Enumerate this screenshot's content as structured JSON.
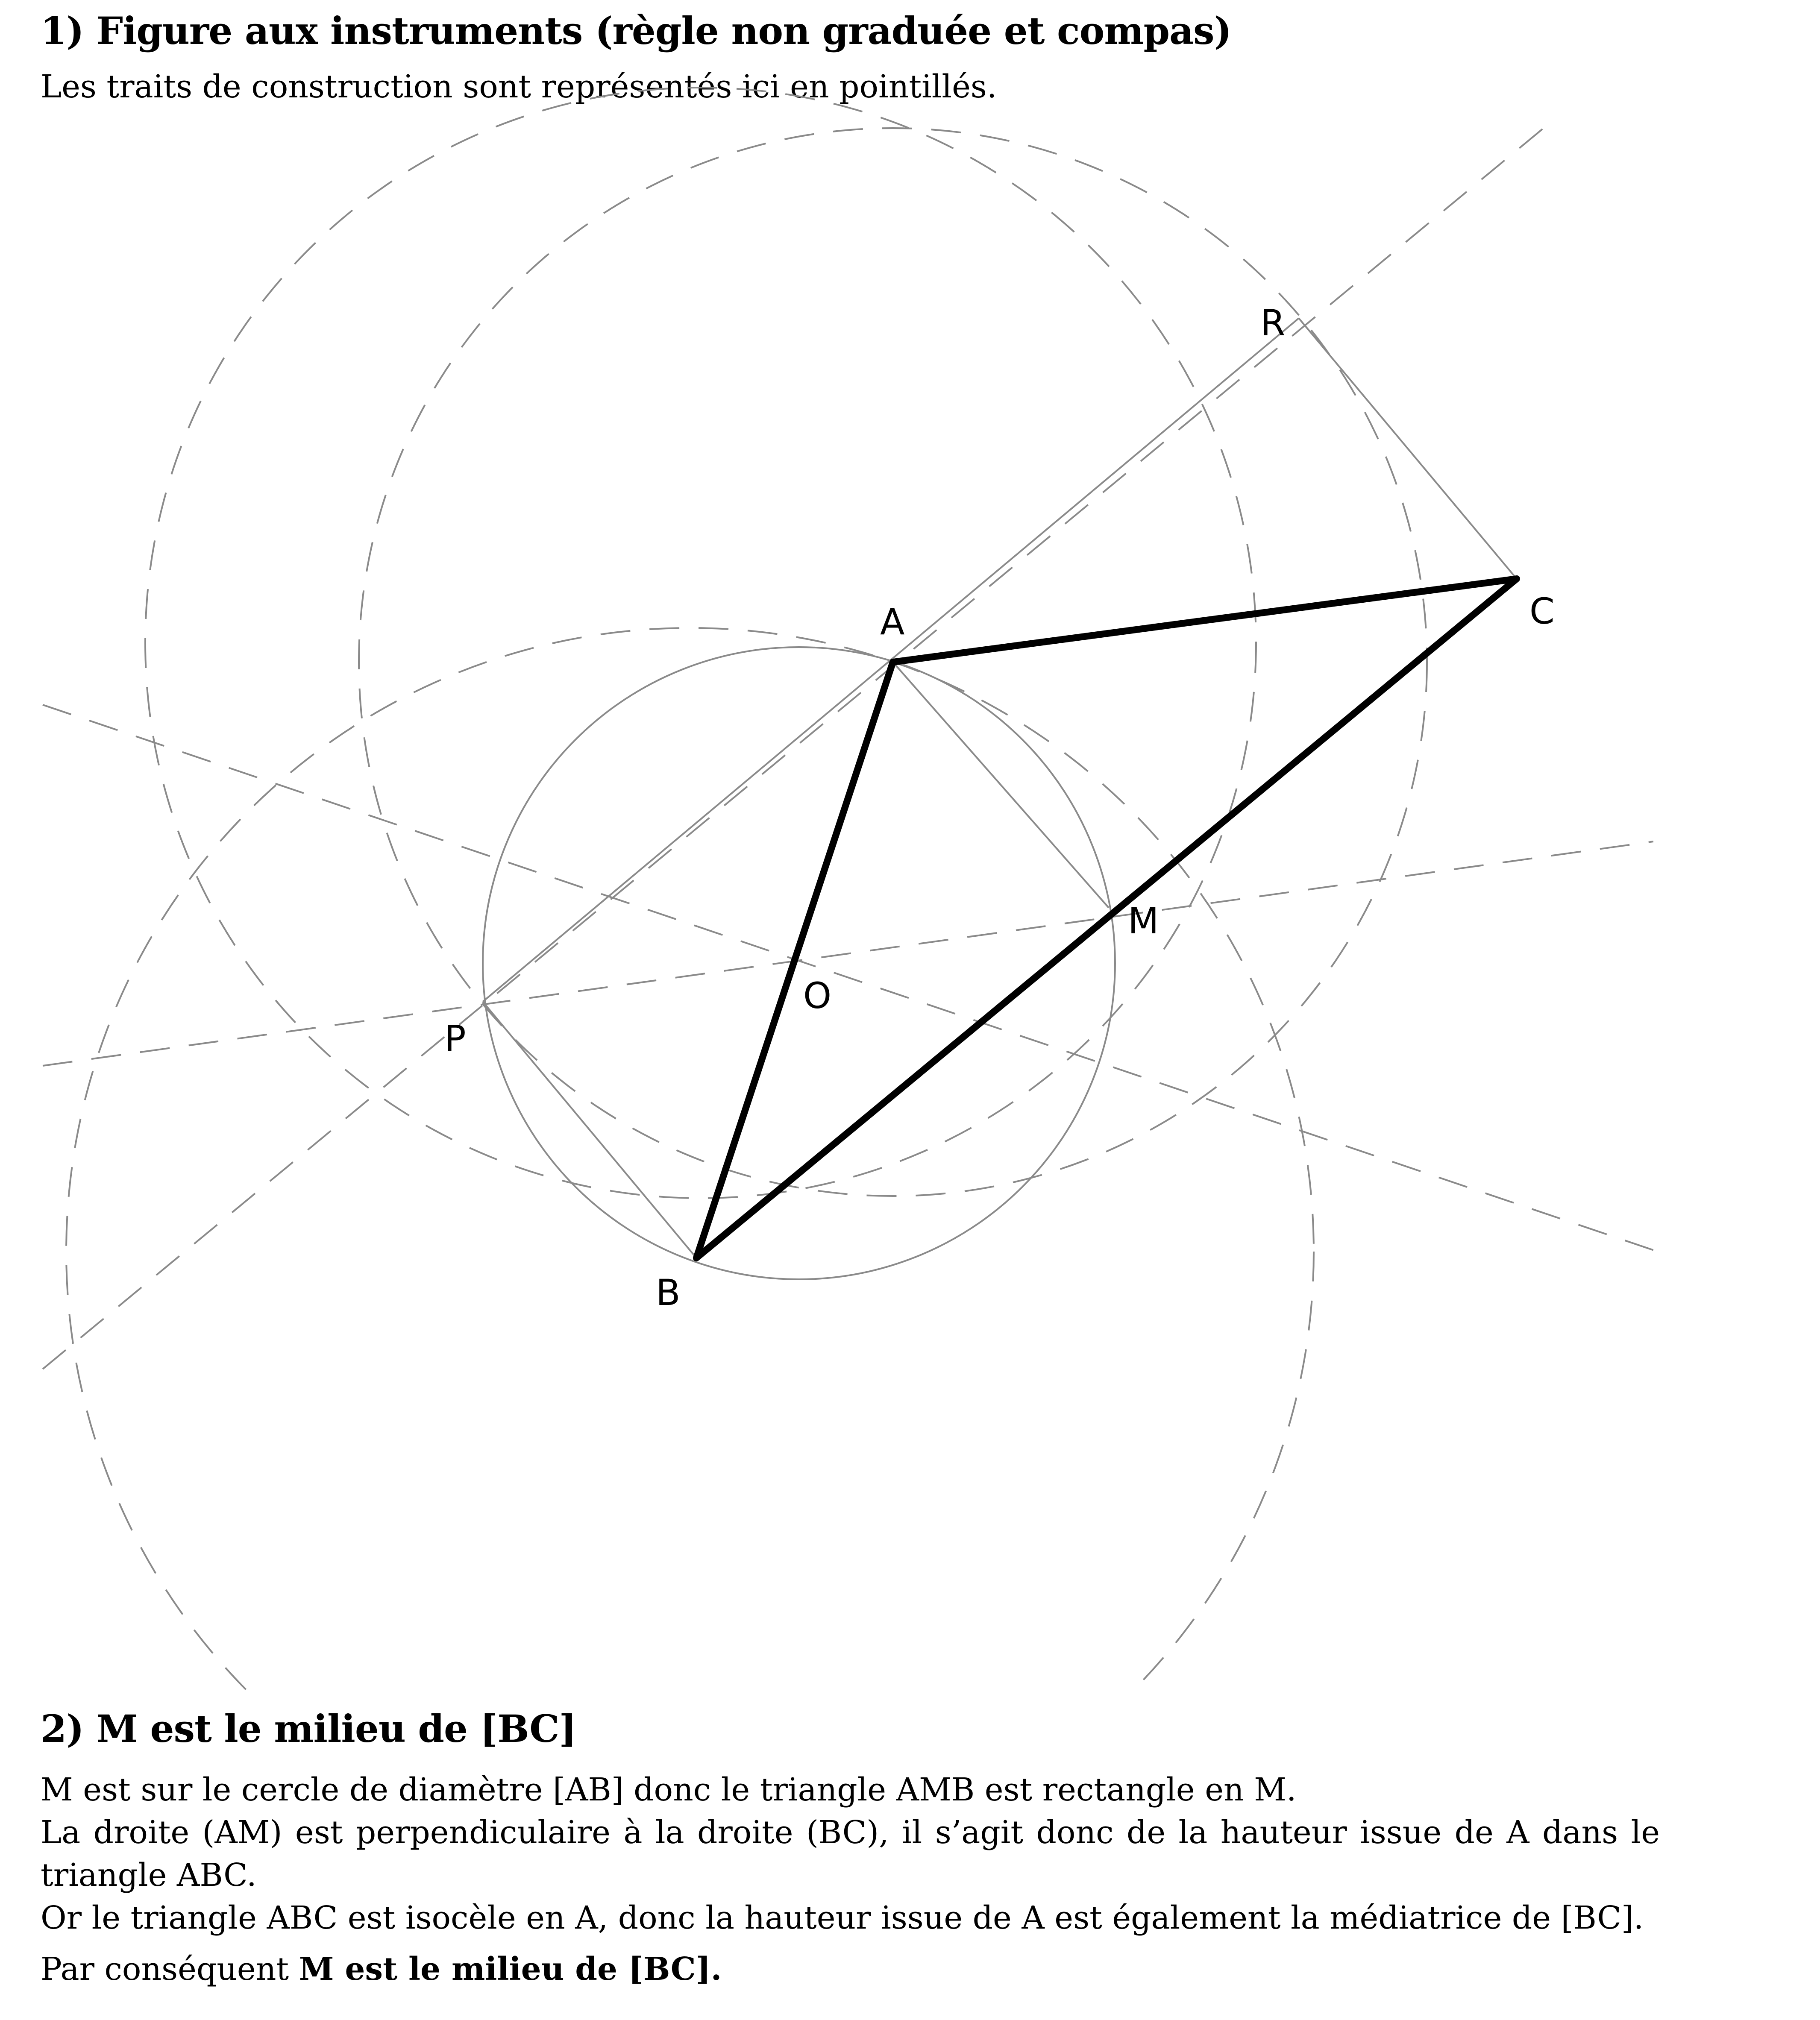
{
  "section1": {
    "title": "1) Figure aux instruments (règle non graduée et compas)",
    "subtitle": "Les traits de construction sont représentés ici en pointillés."
  },
  "figure": {
    "points": [
      {
        "name": "A"
      },
      {
        "name": "B"
      },
      {
        "name": "C"
      },
      {
        "name": "M"
      },
      {
        "name": "O"
      },
      {
        "name": "P"
      },
      {
        "name": "R"
      }
    ],
    "triangle": [
      "A",
      "B",
      "C"
    ],
    "colors": {
      "solid": "#000000",
      "construction": "#8a8a8a"
    }
  },
  "section2": {
    "title": "2) M est le milieu de [BC]",
    "line1": "M est sur le cercle de diamètre [AB] donc le triangle AMB est rectangle en M.",
    "line2": "La droite (AM) est perpendiculaire à la droite (BC), il s’agit donc de la hauteur issue de A dans le triangle ABC.",
    "line3": "Or le triangle ABC est isocèle en A, donc la hauteur issue de A est également la médiatrice de [BC].",
    "conclusion_prefix": "Par conséquent ",
    "conclusion_bold": "M est le milieu de [BC]."
  }
}
